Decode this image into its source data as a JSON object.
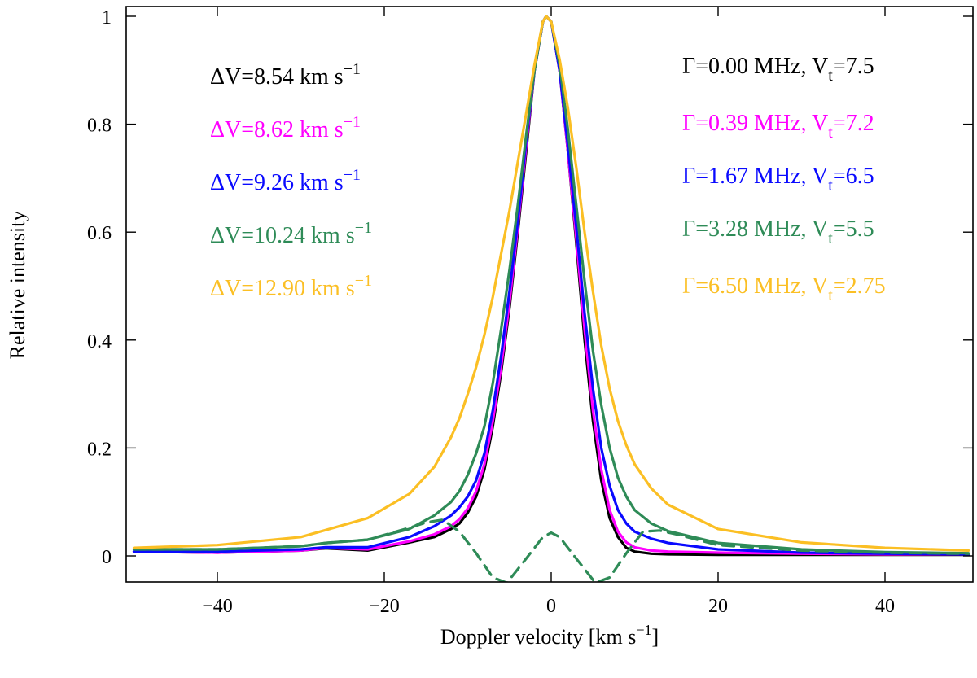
{
  "chart_data": {
    "type": "line",
    "title": "",
    "xlabel": "Doppler velocity [km s",
    "xlabel_sup": "−1",
    "xlabel_end": "]",
    "ylabel": "Relative intensity",
    "xlim": [
      -50,
      50
    ],
    "ylim": [
      -0.05,
      1.02
    ],
    "x_ticks": [
      -40,
      -20,
      0,
      20,
      40
    ],
    "x_tick_labels": [
      "−40",
      "−20",
      "0",
      "20",
      "40"
    ],
    "y_ticks": [
      0,
      0.2,
      0.4,
      0.6,
      0.8,
      1
    ],
    "y_tick_labels": [
      "0",
      "0.2",
      "0.4",
      "0.6",
      "0.8",
      "1"
    ],
    "grid": false,
    "series": [
      {
        "name": "Γ=0.00 MHz, Vt=7.5",
        "color": "#000000",
        "style": "solid",
        "x": [
          -50,
          -40,
          -30,
          -27,
          -22,
          -17,
          -14,
          -12,
          -11,
          -10,
          -9,
          -8,
          -7,
          -6,
          -5,
          -4,
          -3,
          -2,
          -1,
          -0.6,
          0,
          1,
          2,
          3,
          4,
          5,
          6,
          7,
          8,
          9,
          10,
          12,
          14,
          20,
          30,
          40,
          50
        ],
        "y": [
          0.008,
          0.006,
          0.01,
          0.014,
          0.01,
          0.025,
          0.035,
          0.05,
          0.06,
          0.08,
          0.11,
          0.16,
          0.24,
          0.34,
          0.46,
          0.6,
          0.75,
          0.9,
          0.99,
          1.0,
          0.99,
          0.9,
          0.75,
          0.58,
          0.4,
          0.25,
          0.14,
          0.07,
          0.035,
          0.015,
          0.008,
          0.004,
          0.003,
          0.002,
          0.002,
          0.002,
          0.002
        ]
      },
      {
        "name": "Γ=0.39 MHz, Vt=7.2",
        "color": "#ff00ff",
        "style": "solid",
        "x": [
          -50,
          -40,
          -30,
          -27,
          -22,
          -17,
          -14,
          -12,
          -11,
          -10,
          -9,
          -8,
          -7,
          -6,
          -5,
          -4,
          -3,
          -2,
          -1,
          -0.6,
          0,
          1,
          2,
          3,
          4,
          5,
          6,
          7,
          8,
          9,
          10,
          12,
          14,
          20,
          30,
          40,
          50
        ],
        "y": [
          0.008,
          0.006,
          0.01,
          0.015,
          0.012,
          0.027,
          0.04,
          0.055,
          0.068,
          0.088,
          0.12,
          0.17,
          0.25,
          0.35,
          0.47,
          0.61,
          0.76,
          0.9,
          0.99,
          1.0,
          0.99,
          0.9,
          0.75,
          0.59,
          0.42,
          0.27,
          0.16,
          0.085,
          0.045,
          0.025,
          0.016,
          0.01,
          0.008,
          0.006,
          0.004,
          0.003,
          0.003
        ]
      },
      {
        "name": "Γ=1.67 MHz, Vt=6.5",
        "color": "#0a0aff",
        "style": "solid",
        "x": [
          -50,
          -40,
          -30,
          -27,
          -22,
          -17,
          -14,
          -12,
          -11,
          -10,
          -9,
          -8,
          -7,
          -6,
          -5,
          -4,
          -3,
          -2,
          -1,
          -0.6,
          0,
          1,
          2,
          3,
          4,
          5,
          6,
          7,
          8,
          9,
          10,
          12,
          14,
          20,
          30,
          40,
          50
        ],
        "y": [
          0.008,
          0.008,
          0.012,
          0.016,
          0.016,
          0.035,
          0.055,
          0.075,
          0.09,
          0.11,
          0.14,
          0.19,
          0.27,
          0.37,
          0.49,
          0.62,
          0.77,
          0.9,
          0.99,
          1.0,
          0.99,
          0.9,
          0.76,
          0.61,
          0.45,
          0.31,
          0.2,
          0.13,
          0.085,
          0.06,
          0.045,
          0.032,
          0.024,
          0.012,
          0.006,
          0.004,
          0.003
        ]
      },
      {
        "name": "Γ=3.28 MHz, Vt=5.5",
        "color": "#2e8b57",
        "style": "solid",
        "x": [
          -50,
          -40,
          -30,
          -27,
          -22,
          -17,
          -14,
          -12,
          -11,
          -10,
          -9,
          -8,
          -7,
          -6,
          -5,
          -4,
          -3,
          -2,
          -1,
          -0.6,
          0,
          1,
          2,
          3,
          4,
          5,
          6,
          7,
          8,
          9,
          10,
          12,
          14,
          20,
          30,
          40,
          50
        ],
        "y": [
          0.012,
          0.012,
          0.018,
          0.024,
          0.03,
          0.05,
          0.075,
          0.1,
          0.12,
          0.15,
          0.19,
          0.24,
          0.32,
          0.42,
          0.53,
          0.65,
          0.78,
          0.9,
          0.99,
          1.0,
          0.99,
          0.91,
          0.79,
          0.65,
          0.51,
          0.38,
          0.28,
          0.2,
          0.145,
          0.11,
          0.085,
          0.06,
          0.046,
          0.024,
          0.012,
          0.007,
          0.005
        ]
      },
      {
        "name": "Γ=6.50 MHz, Vt=2.75",
        "color": "#fbbf24",
        "style": "solid",
        "x": [
          -50,
          -40,
          -30,
          -27,
          -22,
          -17,
          -14,
          -12,
          -11,
          -10,
          -9,
          -8,
          -7,
          -6,
          -5,
          -4,
          -3,
          -2,
          -1,
          -0.6,
          0,
          1,
          2,
          3,
          4,
          5,
          6,
          7,
          8,
          9,
          10,
          12,
          14,
          20,
          30,
          40,
          50
        ],
        "y": [
          0.015,
          0.02,
          0.035,
          0.048,
          0.07,
          0.115,
          0.165,
          0.22,
          0.255,
          0.3,
          0.35,
          0.41,
          0.48,
          0.56,
          0.64,
          0.73,
          0.82,
          0.91,
          0.99,
          1.0,
          0.99,
          0.92,
          0.83,
          0.72,
          0.6,
          0.49,
          0.39,
          0.31,
          0.25,
          0.205,
          0.17,
          0.125,
          0.095,
          0.05,
          0.025,
          0.015,
          0.01
        ]
      },
      {
        "name": "Γ=3.28 MHz component (dashed)",
        "color": "#2e8b57",
        "style": "dashed",
        "x": [
          -50,
          -40,
          -30,
          -27,
          -22,
          -17,
          -15,
          -13,
          -11,
          -9,
          -7,
          -5.3,
          -3,
          -1,
          0,
          1,
          3,
          5.3,
          7,
          9,
          11,
          13,
          15,
          20,
          30,
          40,
          50
        ],
        "y": [
          0.012,
          0.012,
          0.018,
          0.024,
          0.03,
          0.052,
          0.062,
          0.067,
          0.045,
          0.005,
          -0.04,
          -0.05,
          -0.005,
          0.035,
          0.043,
          0.035,
          -0.005,
          -0.05,
          -0.04,
          0.005,
          0.045,
          0.047,
          0.04,
          0.02,
          0.01,
          0.006,
          0.004
        ]
      }
    ],
    "annotations": [
      {
        "prefix": "ΔV=8.54 km s",
        "sup": "−1",
        "color": "#000000"
      },
      {
        "prefix": "ΔV=8.62 km s",
        "sup": "−1",
        "color": "#ff00ff"
      },
      {
        "prefix": "ΔV=9.26 km s",
        "sup": "−1",
        "color": "#0a0aff"
      },
      {
        "prefix": "ΔV=10.24 km s",
        "sup": "−1",
        "color": "#2e8b57"
      },
      {
        "prefix": "ΔV=12.90 km s",
        "sup": "−1",
        "color": "#fbbf24"
      },
      {
        "prefix": "Γ=0.00 MHz, V",
        "sub": "t",
        "suffix": "=7.5",
        "color": "#000000"
      },
      {
        "prefix": "Γ=0.39 MHz, V",
        "sub": "t",
        "suffix": "=7.2",
        "color": "#ff00ff"
      },
      {
        "prefix": "Γ=1.67 MHz, V",
        "sub": "t",
        "suffix": "=6.5",
        "color": "#0a0aff"
      },
      {
        "prefix": "Γ=3.28 MHz, V",
        "sub": "t",
        "suffix": "=5.5",
        "color": "#2e8b57"
      },
      {
        "prefix": "Γ=6.50 MHz, V",
        "sub": "t",
        "suffix": "=2.75",
        "color": "#fbbf24"
      }
    ]
  }
}
